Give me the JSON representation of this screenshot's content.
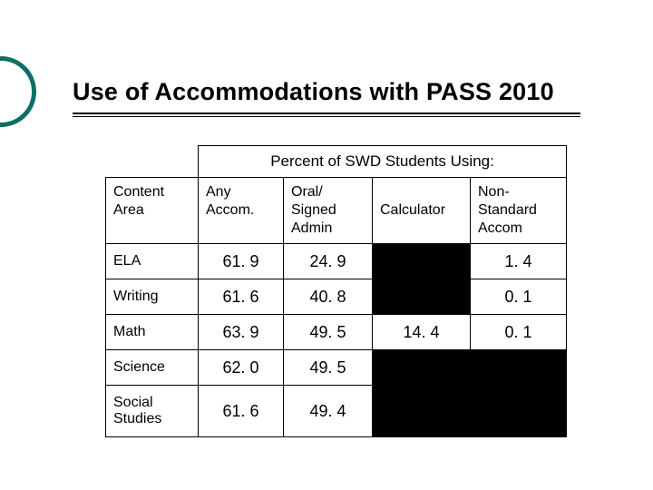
{
  "accent_color": "#0d6f66",
  "title": "Use of Accommodations with PASS 2010",
  "table": {
    "super_header": "Percent of SWD Students Using:",
    "row_header_label": "Content Area",
    "columns": [
      {
        "label_line1": "Any",
        "label_line2": "Accom."
      },
      {
        "label_line1": "Oral/",
        "label_line2": "Signed",
        "label_line3": "Admin"
      },
      {
        "label_line1": "Calculator"
      },
      {
        "label_line1": "Non-",
        "label_line2": "Standard",
        "label_line3": "Accom"
      }
    ],
    "rows": [
      {
        "label": "ELA",
        "cells": [
          "61. 9",
          "24. 9",
          null,
          "1. 4"
        ]
      },
      {
        "label": "Writing",
        "cells": [
          "61. 6",
          "40. 8",
          null,
          "0. 1"
        ]
      },
      {
        "label": "Math",
        "cells": [
          "63. 9",
          "49. 5",
          "14. 4",
          "0. 1"
        ]
      },
      {
        "label": "Science",
        "cells": [
          "62. 0",
          "49. 5",
          null,
          null
        ]
      },
      {
        "label": "Social Studies",
        "cells": [
          "61. 6",
          "49. 4",
          null,
          null
        ]
      }
    ],
    "black_cell_color": "#000000",
    "border_color": "#000000",
    "background_color": "#ffffff",
    "font_family": "Verdana",
    "header_fontsize_pt": 12,
    "cell_fontsize_pt": 13
  }
}
